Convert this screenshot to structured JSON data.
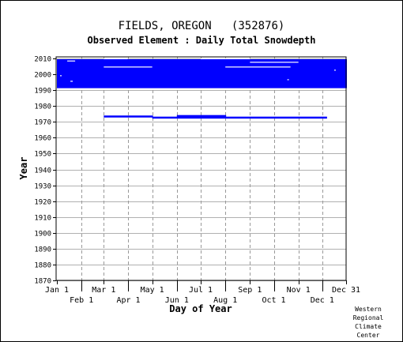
{
  "chart_data": {
    "type": "timeline",
    "title": "FIELDS, OREGON   (352876)",
    "subtitle": "Observed Element : Daily Total Snowdepth",
    "xlabel": "Day of Year",
    "ylabel": "Year",
    "x_ticks_top": [
      "Jan 1",
      "Mar 1",
      "May 1",
      "Jul 1",
      "Sep 1",
      "Nov 1",
      "Dec 31"
    ],
    "x_ticks_bottom": [
      "Feb 1",
      "Apr 1",
      "Jun 1",
      "Aug 1",
      "Oct 1",
      "Dec 1"
    ],
    "x_tick_days": [
      1,
      32,
      60,
      91,
      121,
      152,
      182,
      213,
      244,
      274,
      305,
      335,
      365
    ],
    "xlim": [
      1,
      365
    ],
    "ylim": [
      1870,
      2011
    ],
    "y_ticks": [
      1870,
      1880,
      1890,
      1900,
      1910,
      1920,
      1930,
      1940,
      1950,
      1960,
      1970,
      1980,
      1990,
      2000,
      2010
    ],
    "grid": true,
    "color": "#0000ff",
    "observed_spans": [
      {
        "year": 1973.5,
        "start_day": 60,
        "end_day": 121
      },
      {
        "year": 1972.8,
        "start_day": 121,
        "end_day": 340
      },
      {
        "year": 1973.8,
        "start_day": 152,
        "end_day": 213
      },
      {
        "year": 2009.0,
        "start_day": 1,
        "end_day": 365
      },
      {
        "year": 2008.0,
        "start_day": 1,
        "end_day": 365
      },
      {
        "year": 2007.0,
        "start_day": 1,
        "end_day": 365
      },
      {
        "year": 2006.0,
        "start_day": 1,
        "end_day": 365
      },
      {
        "year": 2005.0,
        "start_day": 1,
        "end_day": 365
      },
      {
        "year": 2004.0,
        "start_day": 1,
        "end_day": 365
      },
      {
        "year": 2003.0,
        "start_day": 1,
        "end_day": 365
      },
      {
        "year": 2002.0,
        "start_day": 1,
        "end_day": 365
      },
      {
        "year": 2001.0,
        "start_day": 1,
        "end_day": 365
      },
      {
        "year": 2000.0,
        "start_day": 1,
        "end_day": 365
      },
      {
        "year": 1999.0,
        "start_day": 1,
        "end_day": 365
      },
      {
        "year": 1998.0,
        "start_day": 1,
        "end_day": 365
      },
      {
        "year": 1997.0,
        "start_day": 1,
        "end_day": 365
      },
      {
        "year": 1996.0,
        "start_day": 1,
        "end_day": 365
      },
      {
        "year": 1995.0,
        "start_day": 1,
        "end_day": 365
      },
      {
        "year": 1994.0,
        "start_day": 1,
        "end_day": 365
      },
      {
        "year": 1993.0,
        "start_day": 1,
        "end_day": 365
      },
      {
        "year": 1992.0,
        "start_day": 1,
        "end_day": 365
      }
    ],
    "missing_spans": [
      {
        "year": 2009.7,
        "start_day": 60,
        "end_day": 90
      },
      {
        "year": 2009.7,
        "start_day": 182,
        "end_day": 244
      },
      {
        "year": 2007.5,
        "start_day": 244,
        "end_day": 305
      },
      {
        "year": 2004.5,
        "start_day": 60,
        "end_day": 121
      },
      {
        "year": 2004.5,
        "start_day": 213,
        "end_day": 295
      },
      {
        "year": 2008.3,
        "start_day": 14,
        "end_day": 24
      },
      {
        "year": 1995.5,
        "start_day": 18,
        "end_day": 21
      },
      {
        "year": 2002.5,
        "start_day": 350,
        "end_day": 352
      },
      {
        "year": 1999.0,
        "start_day": 5,
        "end_day": 7
      },
      {
        "year": 1996.5,
        "start_day": 291,
        "end_day": 293
      }
    ]
  },
  "footer": {
    "credit_lines": [
      "Western",
      "Regional",
      "Climate",
      "Center"
    ]
  }
}
